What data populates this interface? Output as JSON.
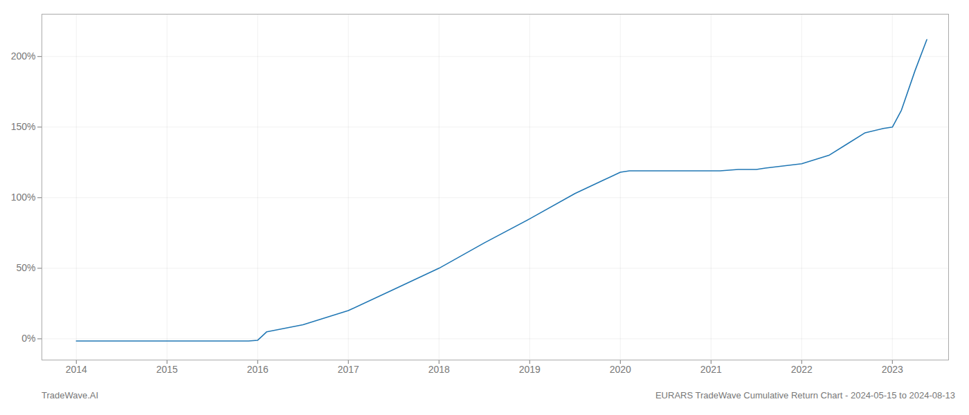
{
  "chart_data": {
    "type": "line",
    "annotations": [
      "TradeWave.AI",
      "EURARS TradeWave Cumulative Return Chart - 2024-05-15 to 2024-08-13"
    ],
    "x": [
      2014.0,
      2014.5,
      2015.0,
      2015.5,
      2015.9,
      2016.0,
      2016.05,
      2016.1,
      2016.5,
      2017.0,
      2017.5,
      2018.0,
      2018.5,
      2019.0,
      2019.5,
      2019.8,
      2020.0,
      2020.1,
      2020.2,
      2020.5,
      2020.8,
      2021.0,
      2021.1,
      2021.3,
      2021.5,
      2021.6,
      2022.0,
      2022.3,
      2022.5,
      2022.7,
      2022.9,
      2023.0,
      2023.1,
      2023.25,
      2023.38
    ],
    "values": [
      -1.5,
      -1.5,
      -1.5,
      -1.5,
      -1.5,
      -1,
      2,
      5,
      10,
      20,
      35,
      50,
      68,
      85,
      103,
      112,
      118,
      119,
      119,
      119,
      119,
      119,
      119,
      120,
      120,
      121,
      124,
      130,
      138,
      146,
      149,
      150,
      162,
      190,
      212
    ],
    "color": "#2077b4",
    "xlim": [
      2013.62,
      2023.62
    ],
    "xticks": [
      2014,
      2015,
      2016,
      2017,
      2018,
      2019,
      2020,
      2021,
      2022,
      2023
    ],
    "ylim": [
      -15,
      230
    ],
    "yticks": [
      {
        "value": 0,
        "label": "0%"
      },
      {
        "value": 50,
        "label": "50%"
      },
      {
        "value": 100,
        "label": "100%"
      },
      {
        "value": 150,
        "label": "150%"
      },
      {
        "value": 200,
        "label": "200%"
      }
    ],
    "grid": true
  }
}
